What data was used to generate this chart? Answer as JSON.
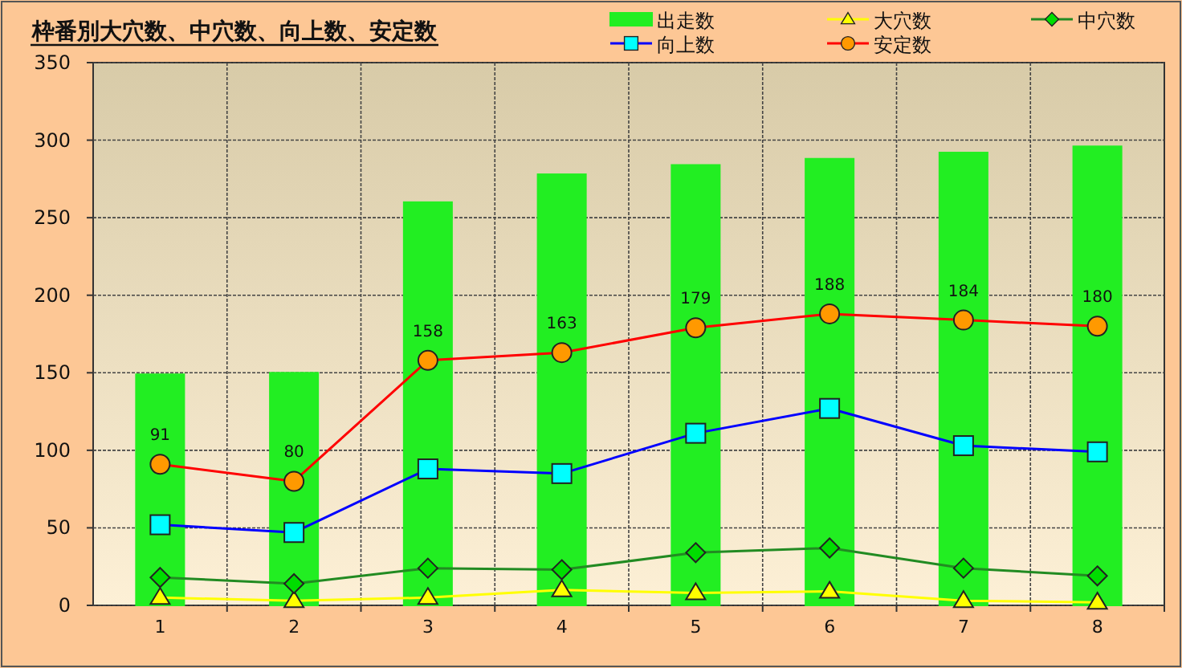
{
  "chart_data": {
    "type": "bar",
    "title": "枠番別大穴数、中穴数、向上数、安定数",
    "categories": [
      "1",
      "2",
      "3",
      "4",
      "5",
      "6",
      "7",
      "8"
    ],
    "series": [
      {
        "name": "出走数",
        "color": "#22ee22",
        "values": [
          149,
          150,
          260,
          278,
          284,
          288,
          292,
          296
        ]
      },
      {
        "name": "大穴数",
        "type": "line",
        "marker": "triangle",
        "color": "#ffff00",
        "values": [
          5,
          3,
          5,
          10,
          8,
          9,
          3,
          2
        ]
      },
      {
        "name": "中穴数",
        "type": "line",
        "marker": "diamond",
        "color": "#228b22",
        "values": [
          18,
          14,
          24,
          23,
          34,
          37,
          24,
          19
        ]
      },
      {
        "name": "向上数",
        "type": "line",
        "marker": "square",
        "color": "#0000ff",
        "values": [
          52,
          47,
          88,
          85,
          111,
          127,
          103,
          99
        ]
      },
      {
        "name": "安定数",
        "type": "line",
        "marker": "circle",
        "color": "#ff0000",
        "values": [
          91,
          80,
          158,
          163,
          179,
          188,
          184,
          180
        ],
        "value_labels": [
          "91",
          "80",
          "158",
          "163",
          "179",
          "188",
          "184",
          "180"
        ]
      }
    ],
    "ylim": [
      0,
      350
    ],
    "yticks": [
      0,
      50,
      100,
      150,
      200,
      250,
      300,
      350
    ],
    "grid": true,
    "legend": "top right"
  }
}
